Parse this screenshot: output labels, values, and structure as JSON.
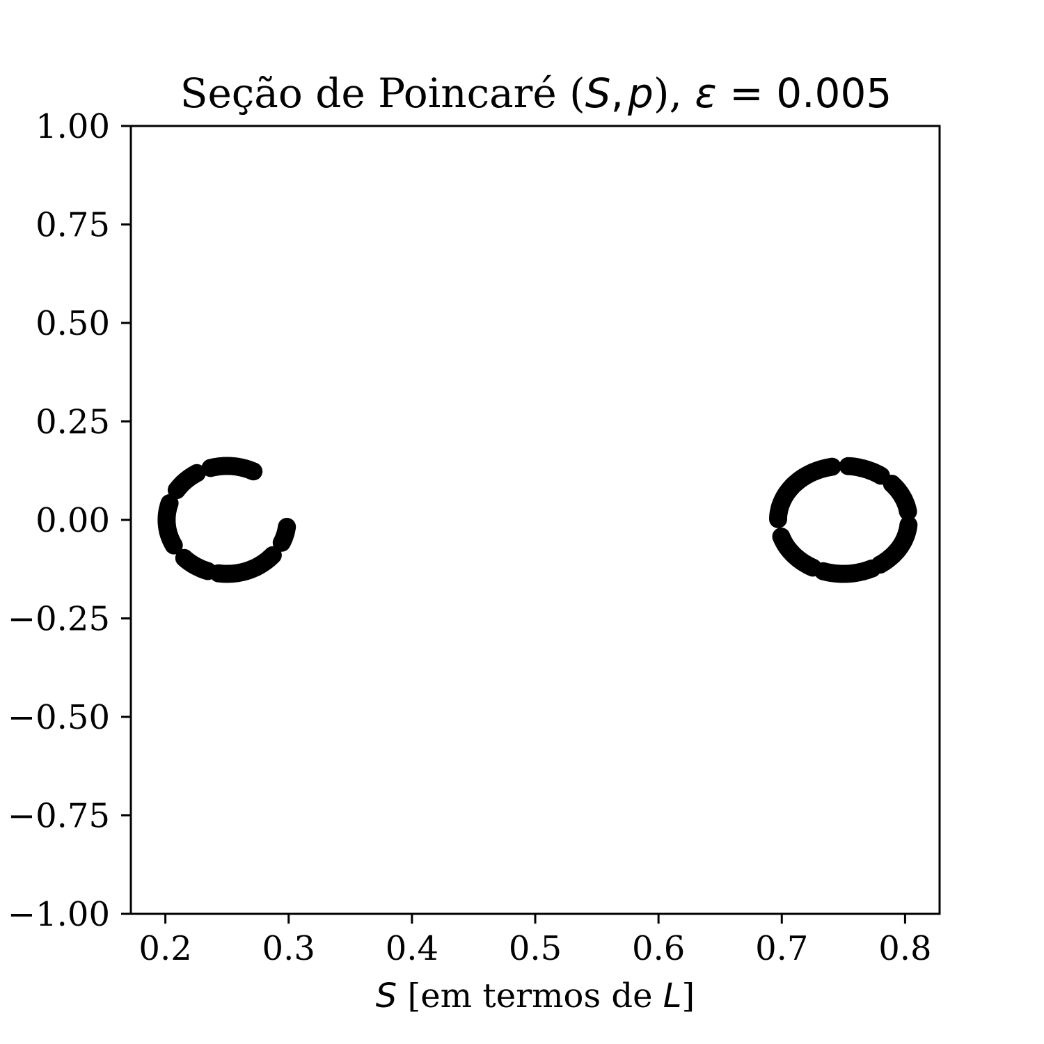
{
  "chart_data": {
    "type": "scatter",
    "title": {
      "prefix": "Seção de Poincaré (",
      "var_s": "S",
      "comma": ",",
      "var_p": "p",
      "mid": "), ",
      "var_eps": "ε",
      "suffix": " = 0.005"
    },
    "xlabel": {
      "var": "S",
      "text": " [em termos de ",
      "var_l": "L",
      "close": "]"
    },
    "ylabel": "",
    "xlim": [
      0.172,
      0.828
    ],
    "ylim": [
      -1.0,
      1.0
    ],
    "x_ticks": [
      0.2,
      0.3,
      0.4,
      0.5,
      0.6,
      0.7,
      0.8
    ],
    "x_tick_labels": [
      "0.2",
      "0.3",
      "0.4",
      "0.5",
      "0.6",
      "0.7",
      "0.8"
    ],
    "y_ticks": [
      1.0,
      0.75,
      0.5,
      0.25,
      0.0,
      -0.25,
      -0.5,
      -0.75,
      -1.0
    ],
    "y_tick_labels": [
      "1.00",
      "0.75",
      "0.50",
      "0.25",
      "0.00",
      "−0.25",
      "−0.50",
      "−0.75",
      "−1.00"
    ],
    "grid": false,
    "marker_color": "#000000",
    "rings": [
      {
        "center": [
          0.25,
          0.0
        ],
        "radius_x": 0.049,
        "radius_y": 0.137,
        "arcs_deg": [
          [
            64,
            107
          ],
          [
            120,
            148
          ],
          [
            162,
            210
          ],
          [
            225,
            252
          ],
          [
            262,
            320
          ],
          [
            335,
            354
          ]
        ]
      },
      {
        "center": [
          0.75,
          0.0
        ],
        "radius_x": 0.053,
        "radius_y": 0.137,
        "arcs_deg": [
          [
            9,
            43
          ],
          [
            55,
            86
          ],
          [
            100,
            180
          ],
          [
            198,
            244
          ],
          [
            252,
            296
          ],
          [
            304,
            355
          ]
        ]
      }
    ],
    "arc_step_deg": 2.2
  }
}
